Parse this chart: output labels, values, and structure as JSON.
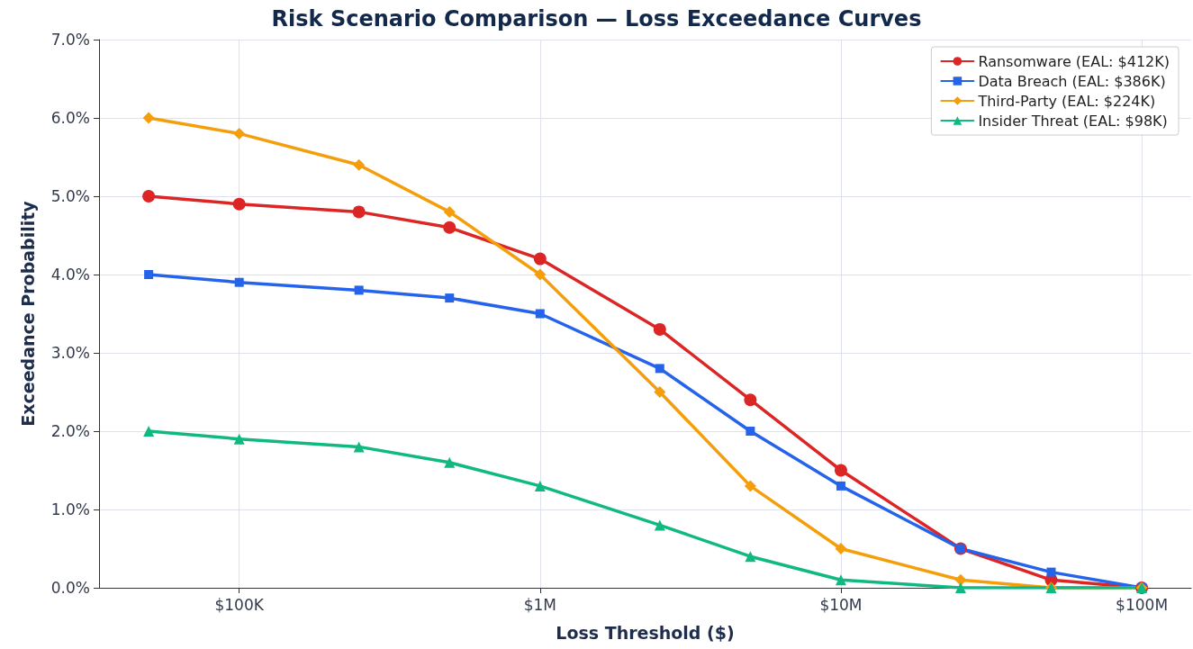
{
  "chart_data": {
    "type": "line",
    "title": "Risk Scenario Comparison — Loss Exceedance Curves",
    "xlabel": "Loss Threshold ($)",
    "ylabel": "Exceedance Probability",
    "x": [
      50000,
      100000,
      250000,
      500000,
      1000000,
      2500000,
      5000000,
      10000000,
      25000000,
      50000000,
      100000000
    ],
    "series": [
      {
        "name": "Ransomware (EAL: $412K)",
        "color": "#dc2626",
        "marker": "circle",
        "values": [
          5.0,
          4.9,
          4.8,
          4.6,
          4.2,
          3.3,
          2.4,
          1.5,
          0.5,
          0.1,
          0.0
        ]
      },
      {
        "name": "Data Breach (EAL: $386K)",
        "color": "#2563eb",
        "marker": "square",
        "values": [
          4.0,
          3.9,
          3.8,
          3.7,
          3.5,
          2.8,
          2.0,
          1.3,
          0.5,
          0.2,
          0.0
        ]
      },
      {
        "name": "Third-Party (EAL: $224K)",
        "color": "#f59e0b",
        "marker": "diamond",
        "values": [
          6.0,
          5.8,
          5.4,
          4.8,
          4.0,
          2.5,
          1.3,
          0.5,
          0.1,
          0.0,
          0.0
        ]
      },
      {
        "name": "Insider Threat (EAL: $98K)",
        "color": "#10b981",
        "marker": "triangle",
        "values": [
          2.0,
          1.9,
          1.8,
          1.6,
          1.3,
          0.8,
          0.4,
          0.1,
          0.0,
          0.0,
          0.0
        ]
      }
    ],
    "log": "x",
    "xlim": [
      34200,
      146000000
    ],
    "xticks": [
      {
        "value": 100000,
        "label": "$100K"
      },
      {
        "value": 1000000,
        "label": "$1M"
      },
      {
        "value": 10000000,
        "label": "$10M"
      },
      {
        "value": 100000000,
        "label": "$100M"
      }
    ],
    "ylim": [
      0,
      7
    ],
    "yticks": [
      {
        "value": 0,
        "label": "0.0%"
      },
      {
        "value": 1,
        "label": "1.0%"
      },
      {
        "value": 2,
        "label": "2.0%"
      },
      {
        "value": 3,
        "label": "3.0%"
      },
      {
        "value": 4,
        "label": "4.0%"
      },
      {
        "value": 5,
        "label": "5.0%"
      },
      {
        "value": 6,
        "label": "6.0%"
      },
      {
        "value": 7,
        "label": "7.0%"
      }
    ],
    "grid": true,
    "legend": "top right",
    "line_style": "solid"
  }
}
